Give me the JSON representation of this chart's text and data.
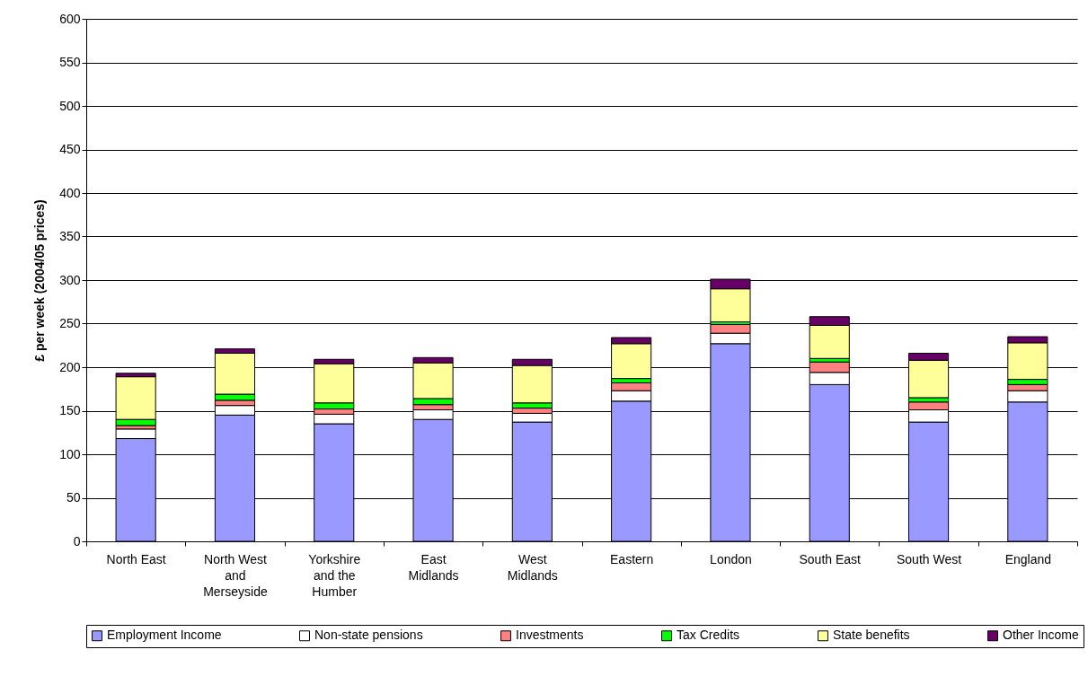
{
  "chart_data": {
    "type": "bar",
    "stacked": true,
    "ylabel": "£ per week (2004/05 prices)",
    "categories": [
      "North East",
      "North West and Merseyside",
      "Yorkshire and the Humber",
      "East Midlands",
      "West Midlands",
      "Eastern",
      "London",
      "South East",
      "South West",
      "England"
    ],
    "series": [
      {
        "name": "Employment Income",
        "color": "#9999ff",
        "values": [
          118,
          145,
          135,
          140,
          137,
          161,
          227,
          180,
          137,
          160
        ]
      },
      {
        "name": "Non-state pensions",
        "color": "#ffffff",
        "values": [
          11,
          11,
          11,
          11,
          10,
          12,
          12,
          14,
          14,
          13
        ]
      },
      {
        "name": "Investments",
        "color": "#ff8080",
        "values": [
          4,
          6,
          6,
          6,
          6,
          9,
          10,
          12,
          9,
          7
        ]
      },
      {
        "name": "Tax Credits",
        "color": "#00ff00",
        "values": [
          7,
          7,
          7,
          7,
          6,
          5,
          3,
          4,
          5,
          6
        ]
      },
      {
        "name": "State benefits",
        "color": "#ffff99",
        "values": [
          49,
          47,
          45,
          41,
          43,
          40,
          38,
          38,
          43,
          42
        ]
      },
      {
        "name": "Other Income",
        "color": "#660066",
        "values": [
          4,
          5,
          5,
          6,
          7,
          7,
          11,
          10,
          8,
          7
        ]
      }
    ],
    "ylim": [
      0,
      600
    ],
    "yticks": [
      0,
      50,
      100,
      150,
      200,
      250,
      300,
      350,
      400,
      450,
      500,
      550,
      600
    ],
    "grid": "y",
    "legend": "bottom"
  }
}
